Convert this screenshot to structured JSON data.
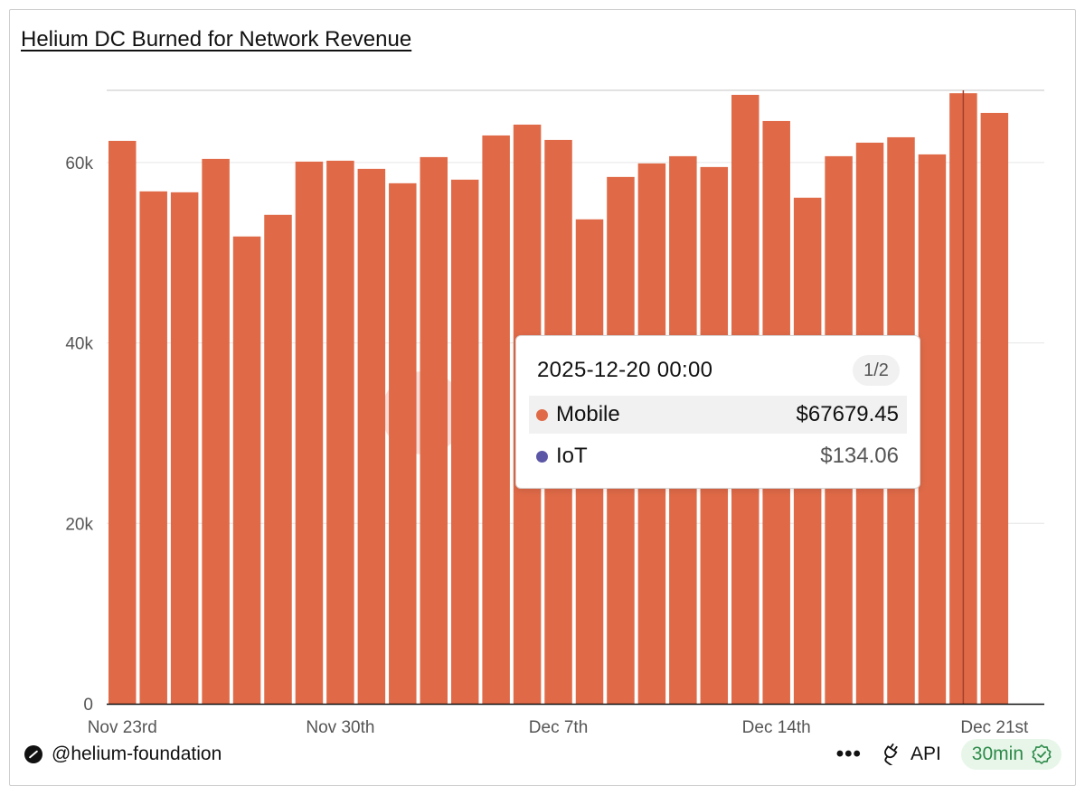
{
  "title": "Helium DC Burned for Network Revenue",
  "chart_data": {
    "type": "bar",
    "title": "Helium DC Burned for Network Revenue",
    "xlabel": "",
    "ylabel": "",
    "ylim": [
      0,
      68000
    ],
    "y_ticks": [
      0,
      20000,
      40000,
      60000
    ],
    "y_tick_labels": [
      "0",
      "20k",
      "40k",
      "60k"
    ],
    "x_tick_labels": [
      {
        "index": 0,
        "label": "Nov 23rd"
      },
      {
        "index": 7,
        "label": "Nov 30th"
      },
      {
        "index": 14,
        "label": "Dec 7th"
      },
      {
        "index": 21,
        "label": "Dec 14th"
      },
      {
        "index": 28,
        "label": "Dec 21st"
      }
    ],
    "categories": [
      "2025-11-23",
      "2025-11-24",
      "2025-11-25",
      "2025-11-26",
      "2025-11-27",
      "2025-11-28",
      "2025-11-29",
      "2025-11-30",
      "2025-12-01",
      "2025-12-02",
      "2025-12-03",
      "2025-12-04",
      "2025-12-05",
      "2025-12-06",
      "2025-12-07",
      "2025-12-08",
      "2025-12-09",
      "2025-12-10",
      "2025-12-11",
      "2025-12-12",
      "2025-12-13",
      "2025-12-14",
      "2025-12-15",
      "2025-12-16",
      "2025-12-17",
      "2025-12-18",
      "2025-12-19",
      "2025-12-20",
      "2025-12-21"
    ],
    "series": [
      {
        "name": "Mobile",
        "color": "#e06a48",
        "values": [
          62400,
          56800,
          56700,
          60400,
          51800,
          54200,
          60100,
          60200,
          59300,
          57700,
          60600,
          58100,
          63000,
          64200,
          62500,
          53700,
          58400,
          59900,
          60700,
          59500,
          67500,
          64600,
          56100,
          60700,
          62200,
          62800,
          60900,
          67679.45,
          65500
        ]
      },
      {
        "name": "IoT",
        "color": "#5b57a6",
        "values": [
          130,
          130,
          130,
          130,
          130,
          130,
          130,
          130,
          130,
          130,
          130,
          130,
          130,
          130,
          130,
          130,
          130,
          130,
          130,
          130,
          130,
          130,
          130,
          130,
          130,
          130,
          130,
          134.06,
          130
        ]
      }
    ],
    "highlight_index": 27,
    "grid": true
  },
  "tooltip": {
    "date": "2025-12-20 00:00",
    "page": "1/2",
    "rows": [
      {
        "name": "Mobile",
        "value": "$67679.45",
        "color": "#e06a48",
        "value_color": "#111111"
      },
      {
        "name": "IoT",
        "value": "$134.06",
        "color": "#5b57a6",
        "value_color": "#555555"
      }
    ]
  },
  "footer": {
    "handle": "@helium-foundation",
    "more": "•••",
    "api_label": "API",
    "refresh_label": "30min"
  },
  "colors": {
    "bar": "#e06a48",
    "badge_text": "#2e8b4a",
    "badge_bg": "#e8f6ea"
  }
}
